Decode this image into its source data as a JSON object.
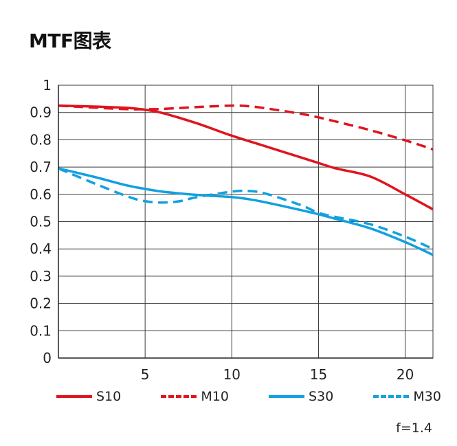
{
  "title": "MTF图表",
  "footnote": "f=1.4",
  "chart_data": {
    "type": "line",
    "title": "MTF图表",
    "xlabel": "",
    "ylabel": "",
    "xlim": [
      0,
      21.6
    ],
    "ylim": [
      0,
      1
    ],
    "grid": true,
    "x_ticks": [
      5,
      10,
      15,
      20
    ],
    "x_tick_labels": [
      "5",
      "10",
      "15",
      "20"
    ],
    "y_ticks": [
      0,
      0.1,
      0.2,
      0.3,
      0.4,
      0.5,
      0.6,
      0.7,
      0.8,
      0.9,
      1
    ],
    "y_tick_labels": [
      "0",
      "0.1",
      "0.2",
      "0.3",
      "0.4",
      "0.5",
      "0.6",
      "0.7",
      "0.8",
      "0.9",
      "1"
    ],
    "series": [
      {
        "name": "S10",
        "color": "#e0141e",
        "dashed": false,
        "x": [
          0,
          2,
          4,
          5,
          6,
          8,
          10,
          12,
          14,
          15,
          16,
          18,
          20,
          21.6
        ],
        "y": [
          0.925,
          0.922,
          0.917,
          0.91,
          0.898,
          0.86,
          0.815,
          0.775,
          0.735,
          0.715,
          0.695,
          0.665,
          0.6,
          0.545
        ]
      },
      {
        "name": "M10",
        "color": "#e0141e",
        "dashed": true,
        "x": [
          0,
          2,
          4,
          5,
          6,
          8,
          10,
          11,
          12,
          14,
          15,
          16,
          18,
          20,
          21.6
        ],
        "y": [
          0.925,
          0.918,
          0.912,
          0.912,
          0.913,
          0.92,
          0.925,
          0.923,
          0.915,
          0.895,
          0.882,
          0.867,
          0.835,
          0.798,
          0.765
        ]
      },
      {
        "name": "S30",
        "color": "#12a0e0",
        "dashed": false,
        "x": [
          0,
          2,
          4,
          5,
          6,
          8,
          10,
          11,
          12,
          14,
          15,
          16,
          18,
          20,
          21.6
        ],
        "y": [
          0.695,
          0.665,
          0.632,
          0.62,
          0.61,
          0.598,
          0.59,
          0.582,
          0.57,
          0.542,
          0.527,
          0.51,
          0.475,
          0.425,
          0.378
        ]
      },
      {
        "name": "M30",
        "color": "#12a0e0",
        "dashed": true,
        "x": [
          0,
          2,
          4,
          5,
          6,
          7,
          8,
          10,
          11,
          12,
          14,
          15,
          16,
          18,
          20,
          21.6
        ],
        "y": [
          0.695,
          0.642,
          0.592,
          0.575,
          0.57,
          0.575,
          0.59,
          0.61,
          0.612,
          0.602,
          0.56,
          0.532,
          0.517,
          0.49,
          0.445,
          0.4
        ]
      }
    ]
  }
}
